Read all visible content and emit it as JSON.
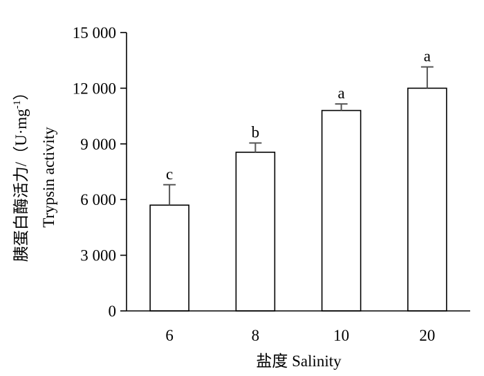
{
  "chart_data": {
    "type": "bar",
    "categories": [
      "6",
      "8",
      "10",
      "20"
    ],
    "values": [
      5700,
      8550,
      10800,
      12000
    ],
    "error_upper": [
      1100,
      500,
      350,
      1150
    ],
    "significance_letters": [
      "c",
      "b",
      "a",
      "a"
    ],
    "xlabel": "盐度 Salinity",
    "ylabel_line1": "胰蛋白酶活力/（U·mg",
    "ylabel_sup": "-1",
    "ylabel_close": "）",
    "ylabel_line2": "Trypsin activity",
    "ylim": [
      0,
      15000
    ],
    "yticks": [
      0,
      3000,
      6000,
      9000,
      12000,
      15000
    ],
    "ytick_labels": [
      "0",
      "3 000",
      "6 000",
      "9 000",
      "12 000",
      "15 000"
    ],
    "grid": false,
    "bar_fill": "#ffffff",
    "bar_stroke": "#000000",
    "errorbar_color": "#555555"
  }
}
